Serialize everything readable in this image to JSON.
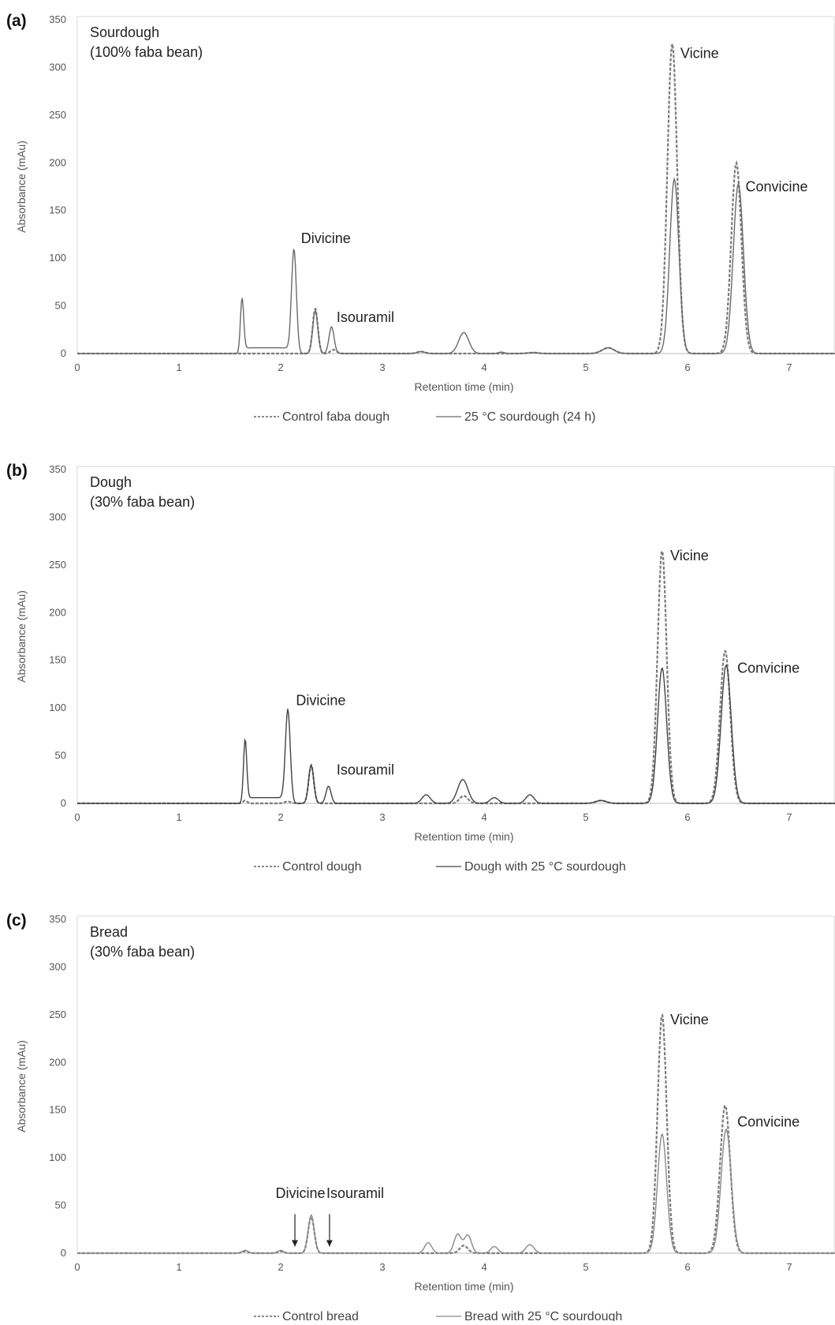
{
  "chart_data": [
    {
      "type": "line",
      "panel_label": "(a)",
      "subtitle": [
        "Sourdough",
        "(100% faba bean)"
      ],
      "xlabel": "Retention time (min)",
      "ylabel": "Absorbance (mAu)",
      "xlim": [
        0,
        7.45
      ],
      "ylim": [
        0,
        350
      ],
      "xticks": [
        0,
        1,
        2,
        3,
        4,
        5,
        6,
        7
      ],
      "yticks": [
        0,
        50,
        100,
        150,
        200,
        250,
        300,
        350
      ],
      "legend_position": "bottom",
      "series": [
        {
          "name": "Control faba dough",
          "style": "dashed",
          "color": "#7a7a7a",
          "peaks": [
            [
              2.34,
              47,
              0.025
            ],
            [
              2.52,
              4,
              0.03
            ],
            [
              3.38,
              2,
              0.04
            ],
            [
              4.48,
              1,
              0.05
            ],
            [
              5.22,
              6,
              0.06
            ],
            [
              5.85,
              325,
              0.048
            ],
            [
              6.48,
              200,
              0.05
            ]
          ]
        },
        {
          "name": "25 °C sourdough (24 h)",
          "style": "solid",
          "color": "#6a6a6a",
          "plateaus": [
            [
              1.63,
              2.08,
              6
            ]
          ],
          "peaks": [
            [
              1.62,
              57,
              0.016
            ],
            [
              2.13,
              110,
              0.024
            ],
            [
              2.34,
              45,
              0.025
            ],
            [
              2.5,
              28,
              0.025
            ],
            [
              3.38,
              2,
              0.04
            ],
            [
              3.8,
              22,
              0.05
            ],
            [
              4.17,
              1.5,
              0.03
            ],
            [
              4.48,
              1,
              0.05
            ],
            [
              5.22,
              6,
              0.06
            ],
            [
              5.87,
              183,
              0.045
            ],
            [
              6.5,
              178,
              0.05
            ]
          ]
        }
      ],
      "annotations": [
        {
          "text": "Divicine",
          "x": 2.2,
          "y": 116
        },
        {
          "text": "Isouramil",
          "x": 2.55,
          "y": 33
        },
        {
          "text": "Vicine",
          "x": 5.93,
          "y": 310
        },
        {
          "text": "Convicine",
          "x": 6.57,
          "y": 170
        }
      ]
    },
    {
      "type": "line",
      "panel_label": "(b)",
      "subtitle": [
        "Dough",
        "(30% faba bean)"
      ],
      "xlabel": "Retention time (min)",
      "ylabel": "Absorbance (mAu)",
      "xlim": [
        0,
        7.45
      ],
      "ylim": [
        0,
        350
      ],
      "xticks": [
        0,
        1,
        2,
        3,
        4,
        5,
        6,
        7
      ],
      "yticks": [
        0,
        50,
        100,
        150,
        200,
        250,
        300,
        350
      ],
      "legend_position": "bottom",
      "series": [
        {
          "name": "Control dough",
          "style": "dashed",
          "color": "#7a7a7a",
          "peaks": [
            [
              1.65,
              3,
              0.02
            ],
            [
              2.07,
              2,
              0.03
            ],
            [
              2.3,
              40,
              0.025
            ],
            [
              3.8,
              8,
              0.04
            ],
            [
              5.15,
              3,
              0.05
            ],
            [
              5.75,
              265,
              0.045
            ],
            [
              6.37,
              160,
              0.05
            ]
          ]
        },
        {
          "name": "Dough with 25 °C sourdough",
          "style": "solid",
          "color": "#444444",
          "plateaus": [
            [
              1.66,
              2.03,
              6
            ]
          ],
          "peaks": [
            [
              1.65,
              66,
              0.016
            ],
            [
              2.07,
              99,
              0.024
            ],
            [
              2.3,
              40,
              0.025
            ],
            [
              2.47,
              18,
              0.025
            ],
            [
              3.43,
              9,
              0.04
            ],
            [
              3.79,
              25,
              0.05
            ],
            [
              4.1,
              6,
              0.04
            ],
            [
              4.45,
              9,
              0.04
            ],
            [
              5.15,
              3,
              0.05
            ],
            [
              5.75,
              142,
              0.045
            ],
            [
              6.38,
              145,
              0.05
            ]
          ]
        }
      ],
      "annotations": [
        {
          "text": "Divicine",
          "x": 2.15,
          "y": 103
        },
        {
          "text": "Isouramil",
          "x": 2.55,
          "y": 30
        },
        {
          "text": "Vicine",
          "x": 5.83,
          "y": 255
        },
        {
          "text": "Convicine",
          "x": 6.49,
          "y": 137
        }
      ]
    },
    {
      "type": "line",
      "panel_label": "(c)",
      "subtitle": [
        "Bread",
        "(30% faba bean)"
      ],
      "xlabel": "Retention time (min)",
      "ylabel": "Absorbance (mAu)",
      "xlim": [
        0,
        7.45
      ],
      "ylim": [
        0,
        350
      ],
      "xticks": [
        0,
        1,
        2,
        3,
        4,
        5,
        6,
        7
      ],
      "yticks": [
        0,
        50,
        100,
        150,
        200,
        250,
        300,
        350
      ],
      "legend_position": "bottom",
      "series": [
        {
          "name": "Control bread",
          "style": "dashed",
          "color": "#7a7a7a",
          "peaks": [
            [
              1.65,
              2,
              0.03
            ],
            [
              2.0,
              2,
              0.03
            ],
            [
              2.3,
              38,
              0.03
            ],
            [
              3.8,
              8,
              0.04
            ],
            [
              5.75,
              250,
              0.045
            ],
            [
              6.37,
              155,
              0.05
            ]
          ]
        },
        {
          "name": "Bread with 25 °C sourdough",
          "style": "solid",
          "color": "#8a8a8a",
          "peaks": [
            [
              1.65,
              3,
              0.03
            ],
            [
              2.0,
              3,
              0.03
            ],
            [
              2.3,
              40,
              0.03
            ],
            [
              3.45,
              11,
              0.035
            ],
            [
              3.74,
              20,
              0.035
            ],
            [
              3.84,
              19,
              0.035
            ],
            [
              4.1,
              7,
              0.035
            ],
            [
              4.45,
              9,
              0.04
            ],
            [
              5.75,
              125,
              0.045
            ],
            [
              6.38,
              130,
              0.05
            ]
          ]
        }
      ],
      "annotations": [
        {
          "text": "Divicine",
          "x": 1.95,
          "y": 58
        },
        {
          "text": "Isouramil",
          "x": 2.45,
          "y": 58
        },
        {
          "text": "Vicine",
          "x": 5.83,
          "y": 240
        },
        {
          "text": "Convicine",
          "x": 6.49,
          "y": 133
        }
      ],
      "arrows": [
        {
          "x": 2.14,
          "y_from": 41,
          "y_to": 7
        },
        {
          "x": 2.48,
          "y_from": 41,
          "y_to": 7
        }
      ]
    }
  ]
}
